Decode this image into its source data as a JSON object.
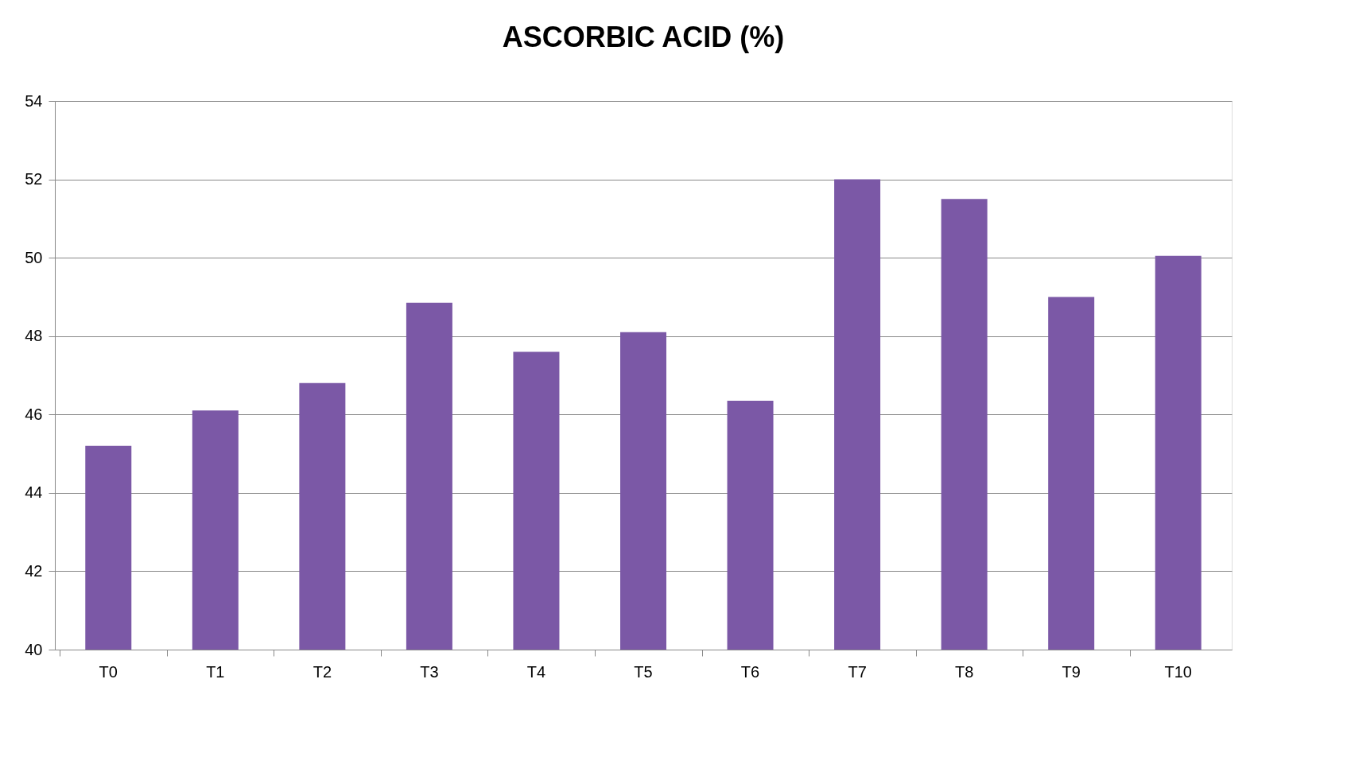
{
  "chart_data": {
    "type": "bar",
    "title": "ASCORBIC ACID (%)",
    "categories": [
      "T0",
      "T1",
      "T2",
      "T3",
      "T4",
      "T5",
      "T6",
      "T7",
      "T8",
      "T9",
      "T10"
    ],
    "values": [
      45.2,
      46.1,
      46.8,
      48.85,
      47.6,
      48.1,
      46.35,
      52.0,
      51.5,
      49.0,
      50.05
    ],
    "color": "#7b58a6",
    "ylim": [
      40,
      54
    ],
    "yticks": [
      40,
      42,
      44,
      46,
      48,
      50,
      52,
      54
    ],
    "grid": "y"
  }
}
